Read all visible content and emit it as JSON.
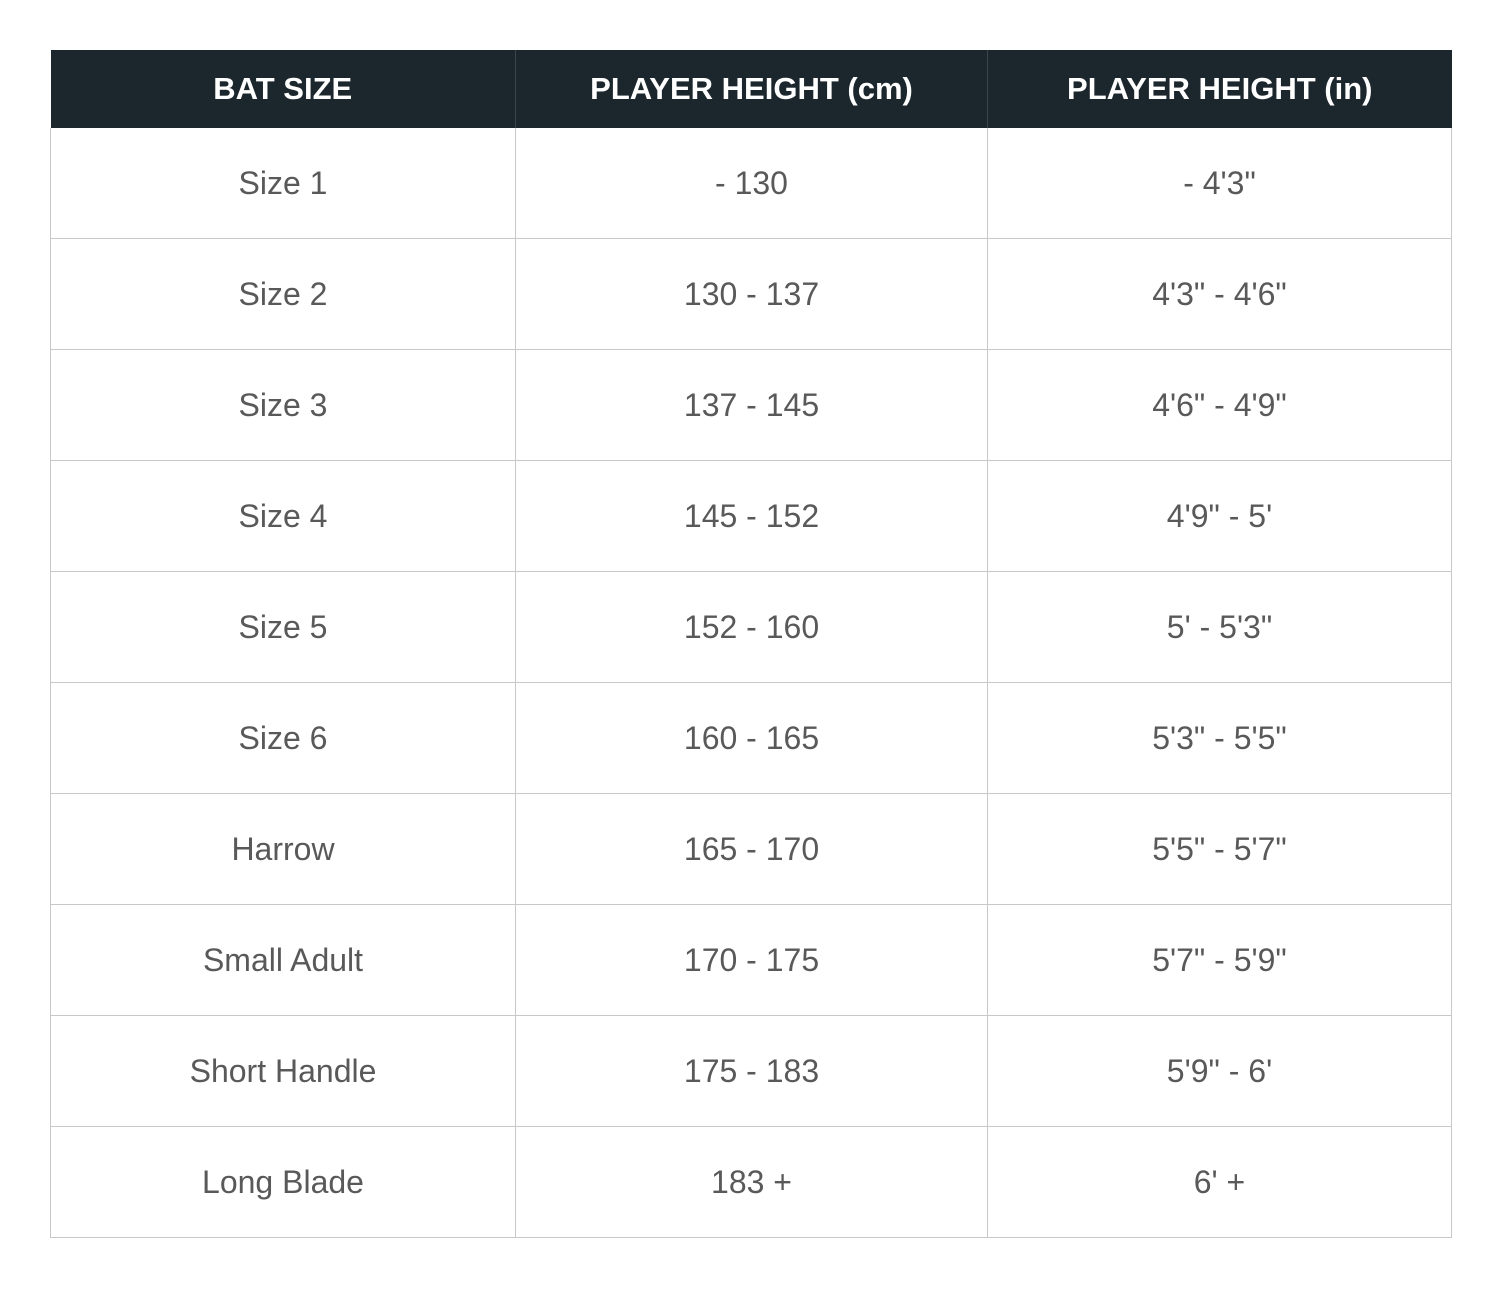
{
  "table": {
    "header_color": "#1c272d",
    "columns": [
      "BAT SIZE",
      "PLAYER HEIGHT (cm)",
      "PLAYER HEIGHT (in)"
    ],
    "rows": [
      [
        "Size 1",
        "- 130",
        "- 4'3\""
      ],
      [
        "Size 2",
        "130 - 137",
        "4'3\" - 4'6\""
      ],
      [
        "Size 3",
        "137 - 145",
        "4'6\" - 4'9\""
      ],
      [
        "Size 4",
        "145 - 152",
        "4'9\" - 5'"
      ],
      [
        "Size 5",
        "152 - 160",
        "5' - 5'3\""
      ],
      [
        "Size 6",
        "160 - 165",
        "5'3\" - 5'5\""
      ],
      [
        "Harrow",
        "165 - 170",
        "5'5\" - 5'7\""
      ],
      [
        "Small Adult",
        "170 - 175",
        "5'7\" - 5'9\""
      ],
      [
        "Short Handle",
        "175 - 183",
        "5'9\" - 6'"
      ],
      [
        "Long Blade",
        "183 +",
        "6' +"
      ]
    ]
  }
}
